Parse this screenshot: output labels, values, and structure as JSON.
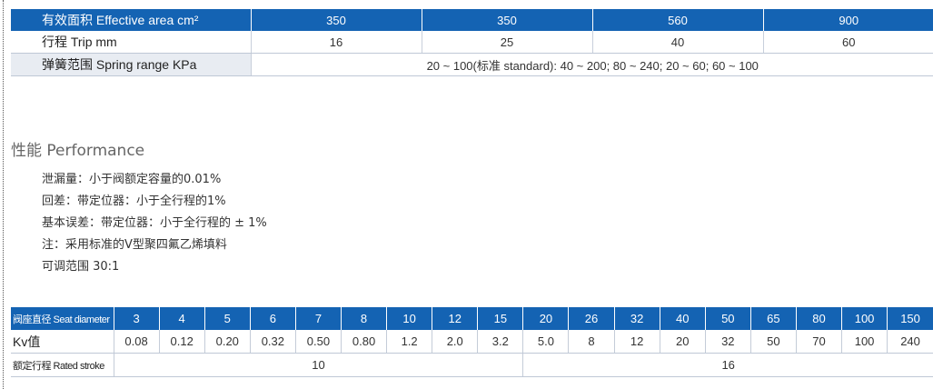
{
  "spec_table": {
    "rows": [
      {
        "label": "有效面积 Effective area cm²",
        "cells": [
          "350",
          "350",
          "560",
          "900"
        ]
      },
      {
        "label": "行程 Trip mm",
        "cells": [
          "16",
          "25",
          "40",
          "60"
        ]
      },
      {
        "label": "弹簧范围 Spring range KPa",
        "merged": "20 ~ 100(标准 standard): 40 ~ 200; 80 ~ 240; 20 ~ 60; 60 ~ 100"
      }
    ]
  },
  "performance": {
    "title": "性能 Performance",
    "items": [
      "泄漏量：小于阀额定容量的0.01%",
      "回差：带定位器：小于全行程的1%",
      "基本误差：带定位器：小于全行程的 ± 1%",
      "注：采用标准的V型聚四氟乙烯填料",
      "可调范围 30:1"
    ]
  },
  "kv_table": {
    "seat_label": "阀座直径 Seat diameter",
    "seat_values": [
      "3",
      "4",
      "5",
      "6",
      "7",
      "8",
      "10",
      "12",
      "15",
      "20",
      "26",
      "32",
      "40",
      "50",
      "65",
      "80",
      "100",
      "150"
    ],
    "kv_label": "Kv值",
    "kv_values": [
      "0.08",
      "0.12",
      "0.20",
      "0.32",
      "0.50",
      "0.80",
      "1.2",
      "2.0",
      "3.2",
      "5.0",
      "8",
      "12",
      "20",
      "32",
      "50",
      "70",
      "100",
      "240"
    ],
    "stroke_label": "额定行程 Rated stroke",
    "stroke_values": [
      "10",
      "16"
    ]
  },
  "colors": {
    "header_blue": "#1463b3",
    "row_gray": "#e8ecf2"
  }
}
